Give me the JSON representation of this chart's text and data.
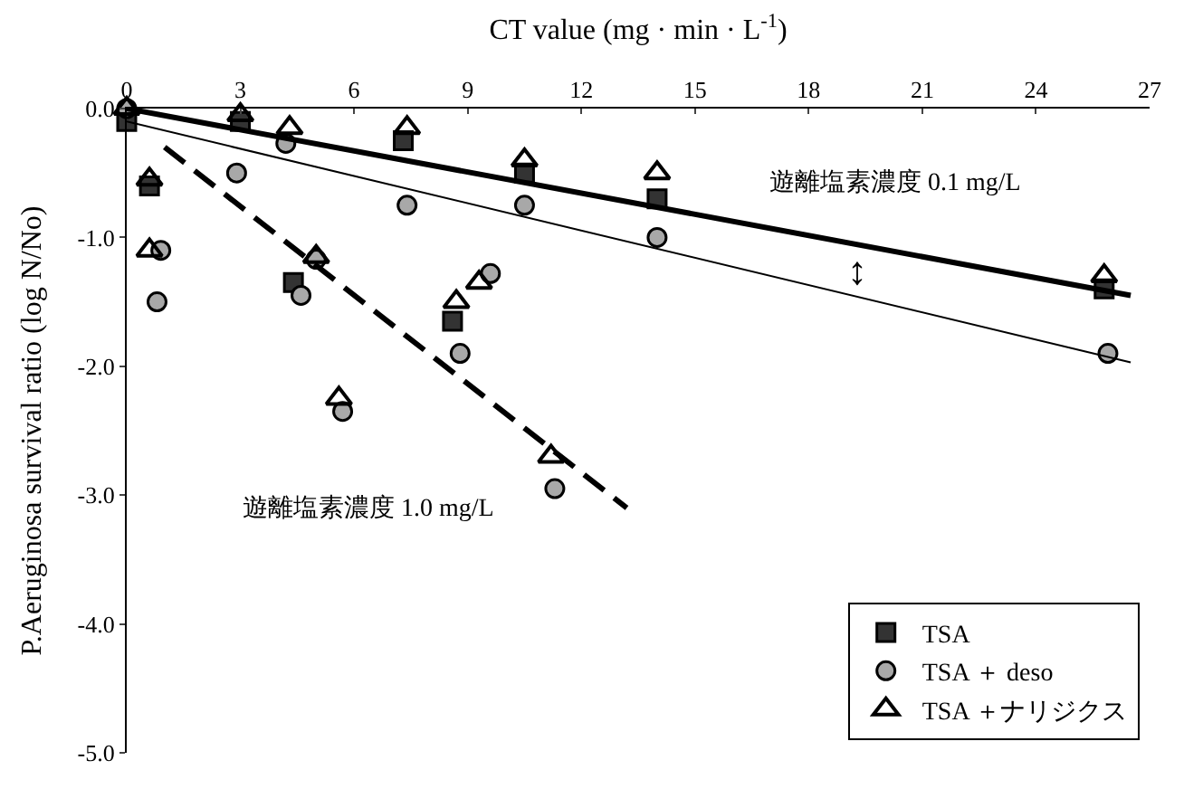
{
  "chart_data": {
    "type": "scatter",
    "xlabel": "CT value (mg · min · L$^{-1}$)",
    "ylabel": "P.Aeruginosa survival ratio (log N/No)",
    "xlim": [
      0,
      27
    ],
    "xticks": [
      0,
      3,
      6,
      9,
      12,
      15,
      18,
      21,
      24,
      27
    ],
    "ylim": [
      -5,
      0
    ],
    "yticks": [
      {
        "value": 0,
        "label": "0.0"
      },
      {
        "value": -1,
        "label": "-1.0"
      },
      {
        "value": -2,
        "label": "-2.0"
      },
      {
        "value": -3,
        "label": "-3.0"
      },
      {
        "value": -4,
        "label": "-4.0"
      },
      {
        "value": -5,
        "label": "-5.0"
      }
    ],
    "legend": "bottom right",
    "series": [
      {
        "name": "TSA",
        "marker": "square",
        "color": "#333333",
        "x": [
          0,
          3,
          7.3,
          10.5,
          14,
          25.8,
          0.6,
          4.4,
          8.6
        ],
        "values": [
          -0.1,
          -0.1,
          -0.25,
          -0.5,
          -0.7,
          -1.4,
          -0.6,
          -1.35,
          -1.65
        ]
      },
      {
        "name": "TSA ＋ deso",
        "marker": "circle",
        "color": "#a8a8a8",
        "x": [
          0,
          0.9,
          0.8,
          2.9,
          4.2,
          5.0,
          4.6,
          7.4,
          10.5,
          9.6,
          8.8,
          5.7,
          11.3,
          14,
          25.9
        ],
        "values": [
          0,
          -1.1,
          -1.5,
          -0.5,
          -0.27,
          -1.17,
          -1.45,
          -0.75,
          -0.75,
          -1.28,
          -1.9,
          -2.35,
          -2.95,
          -1.0,
          -1.9
        ]
      },
      {
        "name": "TSA ＋ナリジクス",
        "marker": "triangle",
        "color": "#000000",
        "x": [
          0,
          3,
          4.3,
          7.4,
          10.5,
          14,
          25.8,
          0.6,
          0.6,
          5.0,
          9.3,
          8.7,
          5.6,
          11.2
        ],
        "values": [
          0,
          -0.05,
          -0.15,
          -0.15,
          -0.4,
          -0.5,
          -1.3,
          -0.55,
          -1.1,
          -1.15,
          -1.35,
          -1.5,
          -2.25,
          -2.7
        ]
      },
      {
        "type": "line",
        "line_style": "solid",
        "color": "#000000",
        "x": [
          0,
          26.5
        ],
        "values": [
          0,
          -1.45
        ]
      },
      {
        "type": "line",
        "line_style": "solid",
        "color": "#000000",
        "x": [
          0,
          26.5
        ],
        "values": [
          -0.1,
          -1.97
        ]
      },
      {
        "type": "line",
        "line_style": "dashed",
        "color": "#000000",
        "x": [
          1,
          13.2
        ],
        "values": [
          -0.3,
          -3.1
        ]
      }
    ],
    "annotations": [
      "遊離塩素濃度 0.1 mg/L",
      "遊離塩素濃度 1.0 mg/L",
      "↕"
    ]
  }
}
